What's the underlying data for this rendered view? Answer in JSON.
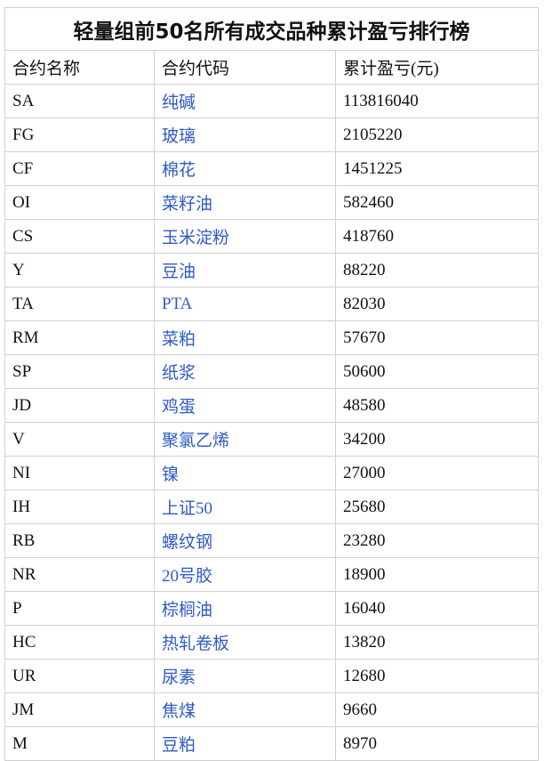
{
  "title": "轻量组前50名所有成交品种累计盈亏排行榜",
  "headers": [
    "合约名称",
    "合约代码",
    "累计盈亏(元)"
  ],
  "link_color": "#2f5bc4",
  "rows": [
    {
      "code": "SA",
      "name": "纯碱",
      "pnl": "113816040"
    },
    {
      "code": "FG",
      "name": "玻璃",
      "pnl": "2105220"
    },
    {
      "code": "CF",
      "name": "棉花",
      "pnl": "1451225"
    },
    {
      "code": "OI",
      "name": "菜籽油",
      "pnl": "582460"
    },
    {
      "code": "CS",
      "name": "玉米淀粉",
      "pnl": "418760"
    },
    {
      "code": "Y",
      "name": "豆油",
      "pnl": "88220"
    },
    {
      "code": "TA",
      "name": "PTA",
      "pnl": "82030"
    },
    {
      "code": "RM",
      "name": "菜粕",
      "pnl": "57670"
    },
    {
      "code": "SP",
      "name": "纸浆",
      "pnl": "50600"
    },
    {
      "code": "JD",
      "name": "鸡蛋",
      "pnl": "48580"
    },
    {
      "code": "V",
      "name": "聚氯乙烯",
      "pnl": "34200"
    },
    {
      "code": "NI",
      "name": "镍",
      "pnl": "27000"
    },
    {
      "code": "IH",
      "name": "上证50",
      "pnl": "25680"
    },
    {
      "code": "RB",
      "name": "螺纹钢",
      "pnl": "23280"
    },
    {
      "code": "NR",
      "name": "20号胶",
      "pnl": "18900"
    },
    {
      "code": "P",
      "name": "棕榈油",
      "pnl": "16040"
    },
    {
      "code": "HC",
      "name": "热轧卷板",
      "pnl": "13820"
    },
    {
      "code": "UR",
      "name": "尿素",
      "pnl": "12680"
    },
    {
      "code": "JM",
      "name": "焦煤",
      "pnl": "9660"
    },
    {
      "code": "M",
      "name": "豆粕",
      "pnl": "8970"
    }
  ]
}
